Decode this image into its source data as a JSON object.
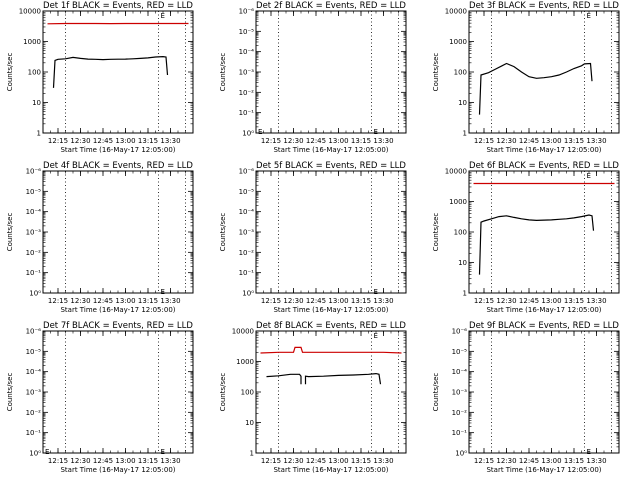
{
  "chart_data": [
    {
      "type": "line",
      "title": "Det 1f BLACK = Events, RED = LLD",
      "xlabel": "Start Time (16-May-17 12:05:00)",
      "ylabel": "Counts/sec",
      "scale": "log",
      "ylim": [
        1,
        10000
      ],
      "y_ticks": [
        "1",
        "10",
        "100",
        "1000",
        "10000"
      ],
      "x_ticks": [
        "12:15",
        "12:30",
        "12:45",
        "13:00",
        "13:15",
        "13:30"
      ],
      "xlim": [
        "12:05",
        "13:45"
      ],
      "vlines": [
        "12:20",
        "13:22",
        "13:40"
      ],
      "marker": {
        "label": "E",
        "x": "13:22",
        "y": 8000
      },
      "series": [
        {
          "color": "#000000",
          "x": [
            "12:12",
            "12:13",
            "12:15",
            "12:20",
            "12:25",
            "12:30",
            "12:35",
            "12:40",
            "12:45",
            "12:50",
            "12:55",
            "13:00",
            "13:05",
            "13:10",
            "13:15",
            "13:20",
            "13:25",
            "13:27",
            "13:28"
          ],
          "y": [
            30,
            240,
            260,
            270,
            300,
            280,
            265,
            260,
            255,
            260,
            262,
            265,
            270,
            280,
            290,
            310,
            320,
            310,
            80
          ]
        },
        {
          "color": "#cc0000",
          "x": [
            "12:08",
            "12:20",
            "12:30",
            "12:40",
            "12:50",
            "13:00",
            "13:10",
            "13:20",
            "13:30",
            "13:42"
          ],
          "y": [
            3800,
            3900,
            3900,
            3900,
            3850,
            3900,
            3900,
            3900,
            3900,
            3900
          ]
        }
      ]
    },
    {
      "type": "line",
      "title": "Det 2f BLACK = Events, RED = LLD",
      "xlabel": "Start Time (16-May-17 12:05:00)",
      "ylabel": "Counts/sec",
      "scale": "log",
      "ylim": [
        1,
        1e-06
      ],
      "y_ticks": [
        "10⁰",
        "10⁻¹",
        "10⁻²",
        "10⁻³",
        "10⁻⁴",
        "10⁻⁵",
        "10⁻⁶"
      ],
      "x_ticks": [
        "12:15",
        "12:30",
        "12:45",
        "13:00",
        "13:15",
        "13:30"
      ],
      "xlim": [
        "12:05",
        "13:45"
      ],
      "vlines": [
        "12:20",
        "13:22",
        "13:40"
      ],
      "marker": {
        "label": "E",
        "x": "13:22",
        "y": 0.7
      },
      "marker2": {
        "label": "E",
        "x": "12:05",
        "y": 0.7
      },
      "series": []
    },
    {
      "type": "line",
      "title": "Det 3f BLACK = Events, RED = LLD",
      "xlabel": "Start Time (16-May-17 12:05:00)",
      "ylabel": "Counts/sec",
      "scale": "log",
      "ylim": [
        1,
        10000
      ],
      "y_ticks": [
        "1",
        "10",
        "100",
        "1000",
        "10000"
      ],
      "x_ticks": [
        "12:15",
        "12:30",
        "12:45",
        "13:00",
        "13:15",
        "13:30"
      ],
      "xlim": [
        "12:05",
        "13:45"
      ],
      "vlines": [
        "12:20",
        "13:22",
        "13:40"
      ],
      "marker": {
        "label": "E",
        "x": "13:22",
        "y": 8000
      },
      "series": [
        {
          "color": "#000000",
          "x": [
            "12:12",
            "12:13",
            "12:18",
            "12:22",
            "12:27",
            "12:30",
            "12:35",
            "12:40",
            "12:45",
            "12:50",
            "12:55",
            "13:00",
            "13:05",
            "13:10",
            "13:15",
            "13:20",
            "13:22",
            "13:26",
            "13:27"
          ],
          "y": [
            4,
            80,
            95,
            120,
            160,
            190,
            150,
            100,
            70,
            62,
            65,
            70,
            80,
            100,
            130,
            160,
            185,
            190,
            50
          ]
        }
      ]
    },
    {
      "type": "line",
      "title": "Det 4f BLACK = Events, RED = LLD",
      "xlabel": "Start Time (16-May-17 12:05:00)",
      "ylabel": "Counts/sec",
      "scale": "log",
      "ylim": [
        1,
        1e-06
      ],
      "y_ticks": [
        "10⁰",
        "10⁻¹",
        "10⁻²",
        "10⁻³",
        "10⁻⁴",
        "10⁻⁵",
        "10⁻⁶"
      ],
      "x_ticks": [
        "12:15",
        "12:30",
        "12:45",
        "13:00",
        "13:15",
        "13:30"
      ],
      "xlim": [
        "12:05",
        "13:45"
      ],
      "vlines": [
        "12:20",
        "13:22",
        "13:40"
      ],
      "marker": {
        "label": "E",
        "x": "13:22",
        "y": 0.7
      },
      "series": []
    },
    {
      "type": "line",
      "title": "Det 5f BLACK = Events, RED = LLD",
      "xlabel": "Start Time (16-May-17 12:05:00)",
      "ylabel": "Counts/sec",
      "scale": "log",
      "ylim": [
        1,
        1e-06
      ],
      "y_ticks": [
        "10⁰",
        "10⁻¹",
        "10⁻²",
        "10⁻³",
        "10⁻⁴",
        "10⁻⁵",
        "10⁻⁶"
      ],
      "x_ticks": [
        "12:15",
        "12:30",
        "12:45",
        "13:00",
        "13:15",
        "13:30"
      ],
      "xlim": [
        "12:05",
        "13:45"
      ],
      "vlines": [
        "12:20",
        "13:22",
        "13:40"
      ],
      "marker": {
        "label": "E",
        "x": "13:22",
        "y": 0.7
      },
      "series": []
    },
    {
      "type": "line",
      "title": "Det 6f BLACK = Events, RED = LLD",
      "xlabel": "Start Time (16-May-17 12:05:00)",
      "ylabel": "Counts/sec",
      "scale": "log",
      "ylim": [
        1,
        10000
      ],
      "y_ticks": [
        "1",
        "10",
        "100",
        "1000",
        "10000"
      ],
      "x_ticks": [
        "12:15",
        "12:30",
        "12:45",
        "13:00",
        "13:15",
        "13:30"
      ],
      "xlim": [
        "12:05",
        "13:45"
      ],
      "vlines": [
        "12:20",
        "13:22",
        "13:40"
      ],
      "marker": {
        "label": "E",
        "x": "13:22",
        "y": 8000
      },
      "series": [
        {
          "color": "#000000",
          "x": [
            "12:12",
            "12:13",
            "12:15",
            "12:20",
            "12:25",
            "12:30",
            "12:35",
            "12:40",
            "12:45",
            "12:50",
            "12:55",
            "13:00",
            "13:05",
            "13:10",
            "13:15",
            "13:20",
            "13:25",
            "13:27",
            "13:28"
          ],
          "y": [
            4,
            210,
            230,
            270,
            320,
            340,
            300,
            270,
            250,
            240,
            245,
            250,
            260,
            270,
            290,
            320,
            360,
            340,
            110
          ]
        },
        {
          "color": "#cc0000",
          "x": [
            "12:08",
            "12:20",
            "12:30",
            "12:40",
            "12:50",
            "13:00",
            "13:10",
            "13:20",
            "13:30",
            "13:42"
          ],
          "y": [
            3900,
            3900,
            3900,
            3900,
            3900,
            3900,
            3900,
            3900,
            3900,
            3900
          ]
        }
      ]
    },
    {
      "type": "line",
      "title": "Det 7f BLACK = Events, RED = LLD",
      "xlabel": "Start Time (16-May-17 12:05:00)",
      "ylabel": "Counts/sec",
      "scale": "log",
      "ylim": [
        1,
        1e-06
      ],
      "y_ticks": [
        "10⁰",
        "10⁻¹",
        "10⁻²",
        "10⁻³",
        "10⁻⁴",
        "10⁻⁵",
        "10⁻⁶"
      ],
      "x_ticks": [
        "12:15",
        "12:30",
        "12:45",
        "13:00",
        "13:15",
        "13:30"
      ],
      "xlim": [
        "12:05",
        "13:45"
      ],
      "vlines": [
        "12:20",
        "13:22",
        "13:40"
      ],
      "marker": {
        "label": "E",
        "x": "13:22",
        "y": 0.7
      },
      "marker2": {
        "label": "E",
        "x": "12:05",
        "y": 0.7
      },
      "series": []
    },
    {
      "type": "line",
      "title": "Det 8f BLACK = Events, RED = LLD",
      "xlabel": "Start Time (16-May-17 12:05:00)",
      "ylabel": "Counts/sec",
      "scale": "log",
      "ylim": [
        1,
        10000
      ],
      "y_ticks": [
        "1",
        "10",
        "100",
        "1000",
        "10000"
      ],
      "x_ticks": [
        "12:15",
        "12:30",
        "12:45",
        "13:00",
        "13:15",
        "13:30"
      ],
      "xlim": [
        "12:05",
        "13:45"
      ],
      "vlines": [
        "12:20",
        "13:22",
        "13:40"
      ],
      "marker": {
        "label": "E",
        "x": "13:22",
        "y": 8000
      },
      "series": [
        {
          "color": "#000000",
          "x": [
            "12:12",
            "12:20",
            "12:28",
            "12:34",
            "12:35",
            "12:35"
          ],
          "y": [
            320,
            340,
            380,
            380,
            330,
            180
          ]
        },
        {
          "color": "#000000",
          "x": [
            "12:38",
            "12:38",
            "12:40",
            "12:50",
            "13:00",
            "13:10",
            "13:20",
            "13:25",
            "13:27",
            "13:28"
          ],
          "y": [
            180,
            330,
            320,
            330,
            350,
            360,
            380,
            400,
            380,
            180
          ]
        },
        {
          "color": "#cc0000",
          "x": [
            "12:08",
            "12:20",
            "12:30",
            "12:31",
            "12:33",
            "12:35",
            "12:36",
            "12:40",
            "12:50",
            "13:00",
            "13:10",
            "13:20",
            "13:30",
            "13:42"
          ],
          "y": [
            1900,
            2000,
            2000,
            2900,
            2900,
            2900,
            2000,
            2000,
            2000,
            2000,
            2000,
            2000,
            2000,
            1900
          ]
        }
      ]
    },
    {
      "type": "line",
      "title": "Det 9f BLACK = Events, RED = LLD",
      "xlabel": "Start Time (16-May-17 12:05:00)",
      "ylabel": "Counts/sec",
      "scale": "log",
      "ylim": [
        1,
        1e-06
      ],
      "y_ticks": [
        "10⁰",
        "10⁻¹",
        "10⁻²",
        "10⁻³",
        "10⁻⁴",
        "10⁻⁵",
        "10⁻⁶"
      ],
      "x_ticks": [
        "12:15",
        "12:30",
        "12:45",
        "13:00",
        "13:15",
        "13:30"
      ],
      "xlim": [
        "12:05",
        "13:45"
      ],
      "vlines": [
        "12:20",
        "13:22",
        "13:40"
      ],
      "marker": {
        "label": "E",
        "x": "13:22",
        "y": 0.7
      },
      "series": []
    }
  ]
}
